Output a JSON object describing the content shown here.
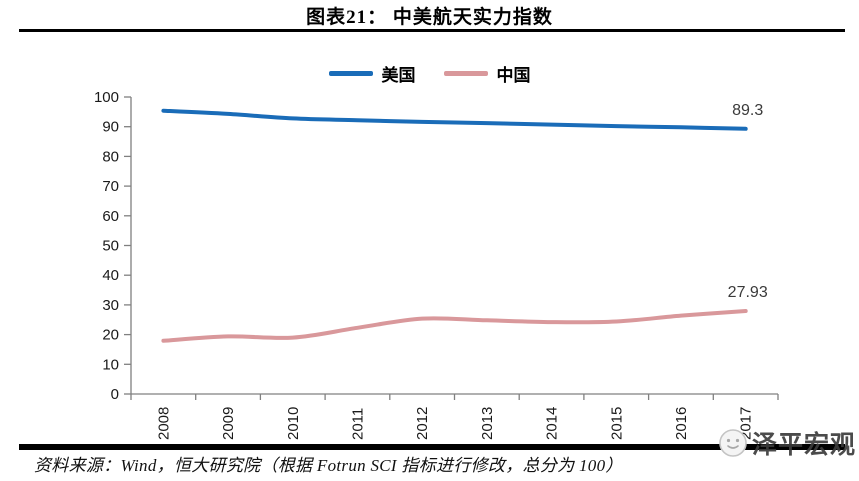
{
  "header": {
    "title": "图表21：  中美航天实力指数"
  },
  "chart_data": {
    "type": "line",
    "title": "图表21： 中美航天实力指数",
    "categories": [
      "2008",
      "2009",
      "2010",
      "2011",
      "2012",
      "2013",
      "2014",
      "2015",
      "2016",
      "2017"
    ],
    "series": [
      {
        "name": "美国",
        "color": "#1a6cb8",
        "values": [
          95.4,
          94.3,
          92.8,
          92.2,
          91.6,
          91.2,
          90.7,
          90.2,
          89.8,
          89.3
        ],
        "end_label": "89.3"
      },
      {
        "name": "中国",
        "color": "#d9989b",
        "values": [
          17.9,
          19.4,
          19.0,
          22.3,
          25.4,
          24.8,
          24.2,
          24.4,
          26.4,
          27.93
        ],
        "end_label": "27.93"
      }
    ],
    "xlabel": "",
    "ylabel": "",
    "ylim": [
      0,
      100
    ],
    "ytick_step": 10,
    "yticks": [
      "0",
      "10",
      "20",
      "30",
      "40",
      "50",
      "60",
      "70",
      "80",
      "90",
      "100"
    ],
    "legend_position": "top",
    "grid": false,
    "axis_color": "#808080",
    "tick_label_color": "#1a1a1a",
    "data_label_color": "#3a3a3a"
  },
  "footer": {
    "source": "资料来源：Wind，恒大研究院（根据 Fotrun SCI 指标进行修改，总分为 100）"
  },
  "watermark": {
    "text": "泽平宏观",
    "logo": "zeping-macro-logo-icon"
  }
}
